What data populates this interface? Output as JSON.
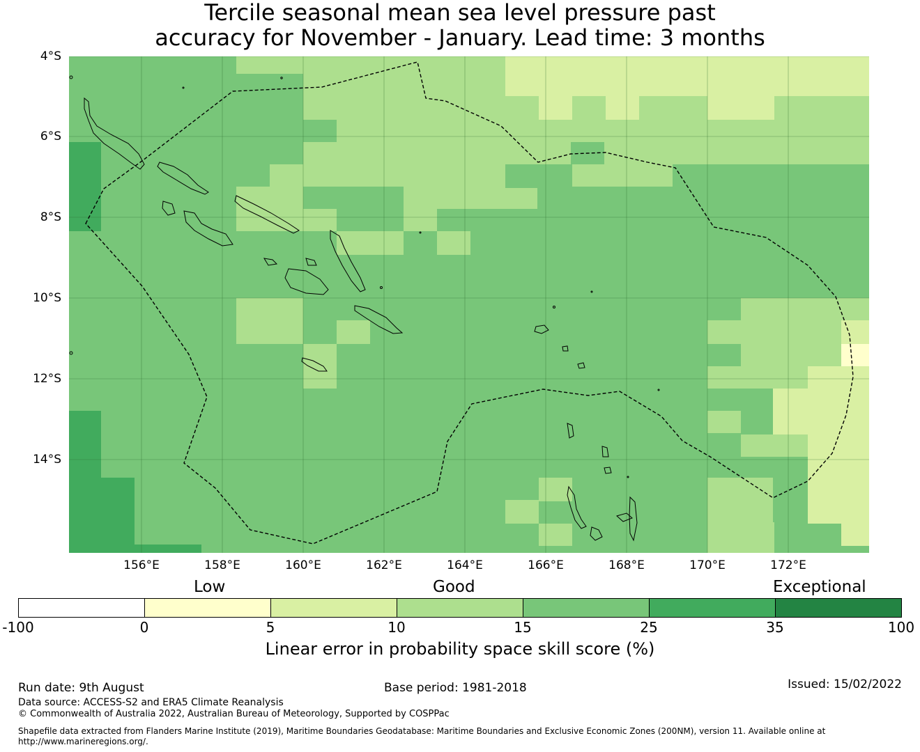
{
  "title": {
    "line1": "Tercile seasonal mean sea level pressure past",
    "line2": "accuracy for November - January. Lead time: 3 months"
  },
  "map": {
    "lat_labels": [
      "4°S",
      "6°S",
      "8°S",
      "10°S",
      "12°S",
      "14°S"
    ],
    "lon_labels": [
      "156°E",
      "158°E",
      "160°E",
      "162°E",
      "164°E",
      "166°E",
      "168°E",
      "170°E",
      "172°E"
    ],
    "lon_range": [
      154.2,
      174.0
    ],
    "lat_range": [
      -16.3,
      -4.0
    ],
    "region": "Solomon Islands EEZ",
    "grid": true,
    "skill_colors": {
      "10-15": "#addf8e",
      "15-25": "#78c679",
      "25-35": "#41ab5d",
      "5-10": "#d9f0a3",
      "0-5": "#ffffcc"
    }
  },
  "colorbar": {
    "categories": [
      "Low",
      "Good",
      "Exceptional"
    ],
    "ticks": [
      "-100",
      "0",
      "5",
      "10",
      "15",
      "25",
      "35",
      "100"
    ],
    "colors": [
      "#ffffff",
      "#ffffcc",
      "#d9f0a3",
      "#addf8e",
      "#78c679",
      "#41ab5d",
      "#238443"
    ],
    "label": "Linear error in probability space skill score (%)"
  },
  "footer": {
    "run_date": "Run date: 9th August",
    "base_period": "Base period: 1981-2018",
    "issued": "Issued: 15/02/2022",
    "data_source": "Data source: ACCESS-S2 and ERA5 Climate Reanalysis",
    "copyright": "© Commonwealth of Australia 2022, Australian Bureau of Meteorology, Supported by COSPPac",
    "shapefile_line1": "Shapefile data extracted from Flanders Marine Institute (2019), Maritime Boundaries Geodatabase: Maritime Boundaries and Exclusive Economic Zones (200NM), version 11. Available online at",
    "shapefile_line2": "http://www.marineregions.org/."
  }
}
